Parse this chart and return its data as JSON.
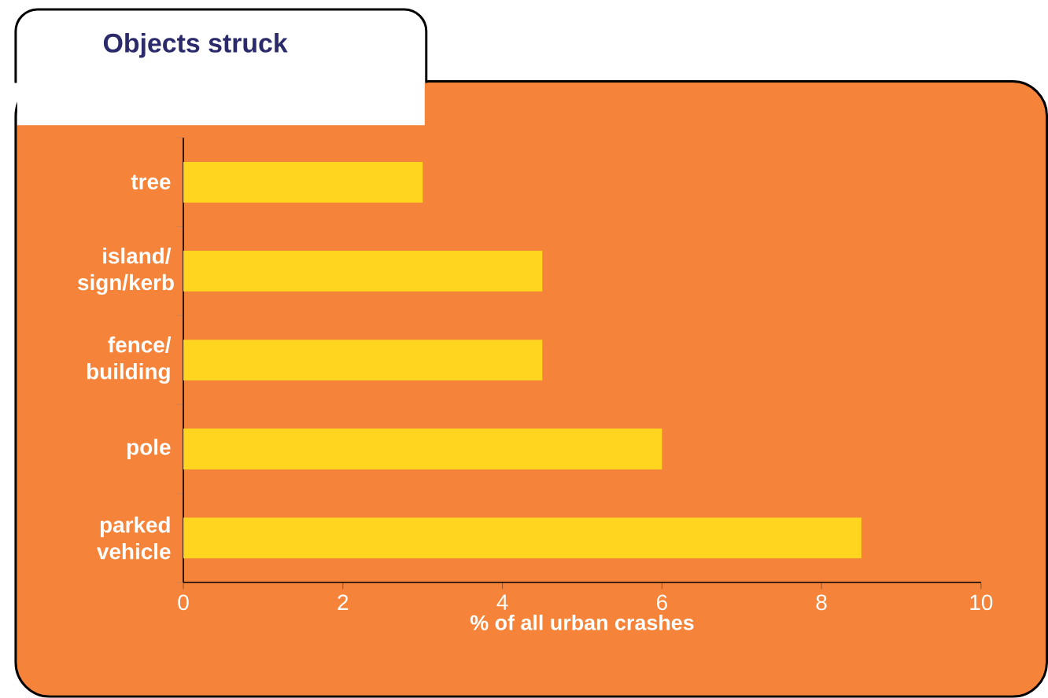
{
  "chart_data": {
    "type": "bar",
    "orientation": "horizontal",
    "title": "Objects struck",
    "xlabel": "% of all urban crashes",
    "categories": [
      "tree",
      "island/ sign/kerb",
      "fence/ building",
      "pole",
      "parked vehicle"
    ],
    "values": [
      3,
      4.5,
      4.5,
      6,
      8.5
    ],
    "color": "#ffd520",
    "xlim": [
      0,
      10
    ],
    "xticks": [
      0,
      2,
      4,
      6,
      8,
      10
    ],
    "grid": false,
    "legend": false
  }
}
